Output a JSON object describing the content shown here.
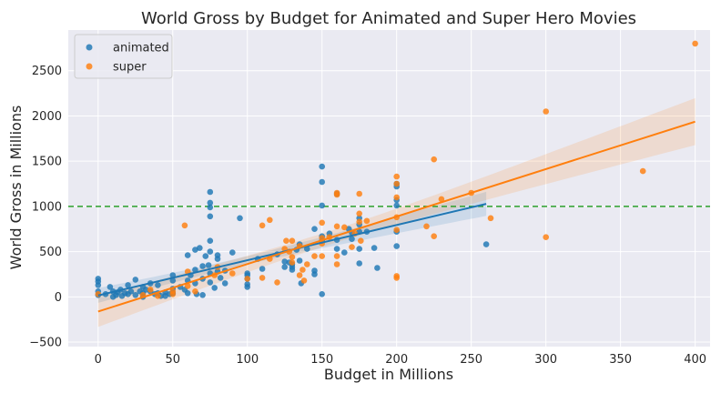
{
  "chart_data": {
    "type": "scatter",
    "title": "World Gross by Budget for Animated and Super Hero Movies",
    "xlabel": "Budget in Millions",
    "ylabel": "World Gross in Millions",
    "xlim": [
      -20,
      410
    ],
    "ylim": [
      -550,
      2950
    ],
    "xticks": [
      0,
      50,
      100,
      150,
      200,
      250,
      300,
      350,
      400
    ],
    "yticks": [
      -500,
      0,
      500,
      1000,
      1500,
      2000,
      2500
    ],
    "grid": true,
    "legend_position": "top-left",
    "reference_line": {
      "y": 1000,
      "color": "#2ca02c",
      "style": "dashed"
    },
    "series": [
      {
        "name": "animated",
        "color": "#1f77b4",
        "points": [
          [
            0,
            200
          ],
          [
            0,
            170
          ],
          [
            0,
            130
          ],
          [
            0,
            60
          ],
          [
            0,
            20
          ],
          [
            5,
            30
          ],
          [
            8,
            110
          ],
          [
            10,
            60
          ],
          [
            10,
            0
          ],
          [
            12,
            20
          ],
          [
            13,
            50
          ],
          [
            15,
            80
          ],
          [
            16,
            10
          ],
          [
            18,
            40
          ],
          [
            20,
            130
          ],
          [
            20,
            30
          ],
          [
            22,
            60
          ],
          [
            25,
            190
          ],
          [
            25,
            20
          ],
          [
            28,
            60
          ],
          [
            30,
            110
          ],
          [
            30,
            40
          ],
          [
            30,
            0
          ],
          [
            32,
            80
          ],
          [
            35,
            150
          ],
          [
            35,
            60
          ],
          [
            38,
            30
          ],
          [
            40,
            130
          ],
          [
            40,
            40
          ],
          [
            42,
            10
          ],
          [
            45,
            50
          ],
          [
            45,
            10
          ],
          [
            48,
            30
          ],
          [
            50,
            240
          ],
          [
            50,
            180
          ],
          [
            50,
            90
          ],
          [
            50,
            40
          ],
          [
            55,
            110
          ],
          [
            58,
            80
          ],
          [
            60,
            460
          ],
          [
            60,
            180
          ],
          [
            60,
            40
          ],
          [
            62,
            240
          ],
          [
            65,
            520
          ],
          [
            65,
            300
          ],
          [
            65,
            150
          ],
          [
            66,
            30
          ],
          [
            68,
            540
          ],
          [
            70,
            340
          ],
          [
            70,
            200
          ],
          [
            70,
            20
          ],
          [
            72,
            450
          ],
          [
            74,
            350
          ],
          [
            75,
            1160
          ],
          [
            75,
            1040
          ],
          [
            75,
            990
          ],
          [
            75,
            890
          ],
          [
            75,
            620
          ],
          [
            75,
            500
          ],
          [
            75,
            260
          ],
          [
            75,
            160
          ],
          [
            78,
            100
          ],
          [
            80,
            460
          ],
          [
            80,
            420
          ],
          [
            80,
            280
          ],
          [
            82,
            210
          ],
          [
            85,
            290
          ],
          [
            85,
            150
          ],
          [
            90,
            490
          ],
          [
            95,
            870
          ],
          [
            100,
            260
          ],
          [
            100,
            240
          ],
          [
            100,
            200
          ],
          [
            100,
            140
          ],
          [
            100,
            110
          ],
          [
            107,
            420
          ],
          [
            110,
            310
          ],
          [
            120,
            470
          ],
          [
            125,
            390
          ],
          [
            125,
            330
          ],
          [
            128,
            380
          ],
          [
            130,
            360
          ],
          [
            130,
            330
          ],
          [
            130,
            300
          ],
          [
            133,
            520
          ],
          [
            135,
            580
          ],
          [
            135,
            400
          ],
          [
            136,
            150
          ],
          [
            140,
            530
          ],
          [
            145,
            750
          ],
          [
            145,
            290
          ],
          [
            145,
            250
          ],
          [
            150,
            1440
          ],
          [
            150,
            1270
          ],
          [
            150,
            1010
          ],
          [
            150,
            670
          ],
          [
            150,
            620
          ],
          [
            150,
            30
          ],
          [
            155,
            700
          ],
          [
            160,
            1140
          ],
          [
            160,
            630
          ],
          [
            160,
            530
          ],
          [
            165,
            490
          ],
          [
            168,
            750
          ],
          [
            170,
            710
          ],
          [
            170,
            640
          ],
          [
            175,
            870
          ],
          [
            175,
            800
          ],
          [
            175,
            720
          ],
          [
            175,
            530
          ],
          [
            175,
            370
          ],
          [
            180,
            720
          ],
          [
            185,
            540
          ],
          [
            187,
            320
          ],
          [
            200,
            1250
          ],
          [
            200,
            1220
          ],
          [
            200,
            1070
          ],
          [
            200,
            1010
          ],
          [
            200,
            720
          ],
          [
            200,
            560
          ],
          [
            260,
            580
          ]
        ]
      },
      {
        "name": "super",
        "color": "#ff7f0e",
        "points": [
          [
            0,
            30
          ],
          [
            30,
            20
          ],
          [
            35,
            80
          ],
          [
            40,
            10
          ],
          [
            50,
            60
          ],
          [
            50,
            30
          ],
          [
            58,
            790
          ],
          [
            60,
            280
          ],
          [
            60,
            120
          ],
          [
            65,
            60
          ],
          [
            78,
            240
          ],
          [
            80,
            330
          ],
          [
            90,
            260
          ],
          [
            100,
            200
          ],
          [
            110,
            790
          ],
          [
            110,
            210
          ],
          [
            115,
            850
          ],
          [
            115,
            420
          ],
          [
            120,
            160
          ],
          [
            125,
            530
          ],
          [
            126,
            620
          ],
          [
            128,
            500
          ],
          [
            130,
            620
          ],
          [
            130,
            440
          ],
          [
            130,
            380
          ],
          [
            135,
            560
          ],
          [
            135,
            240
          ],
          [
            137,
            300
          ],
          [
            138,
            180
          ],
          [
            140,
            360
          ],
          [
            145,
            450
          ],
          [
            150,
            820
          ],
          [
            150,
            650
          ],
          [
            150,
            590
          ],
          [
            150,
            450
          ],
          [
            155,
            660
          ],
          [
            160,
            1130
          ],
          [
            160,
            1150
          ],
          [
            160,
            780
          ],
          [
            160,
            450
          ],
          [
            160,
            360
          ],
          [
            165,
            770
          ],
          [
            170,
            550
          ],
          [
            172,
            700
          ],
          [
            175,
            1140
          ],
          [
            175,
            920
          ],
          [
            175,
            830
          ],
          [
            176,
            620
          ],
          [
            180,
            840
          ],
          [
            200,
            1330
          ],
          [
            200,
            1250
          ],
          [
            200,
            1100
          ],
          [
            200,
            880
          ],
          [
            200,
            740
          ],
          [
            200,
            230
          ],
          [
            200,
            210
          ],
          [
            220,
            780
          ],
          [
            225,
            1520
          ],
          [
            225,
            670
          ],
          [
            230,
            1080
          ],
          [
            250,
            1150
          ],
          [
            263,
            870
          ],
          [
            300,
            2050
          ],
          [
            300,
            660
          ],
          [
            365,
            1390
          ],
          [
            400,
            2800
          ]
        ]
      }
    ]
  }
}
